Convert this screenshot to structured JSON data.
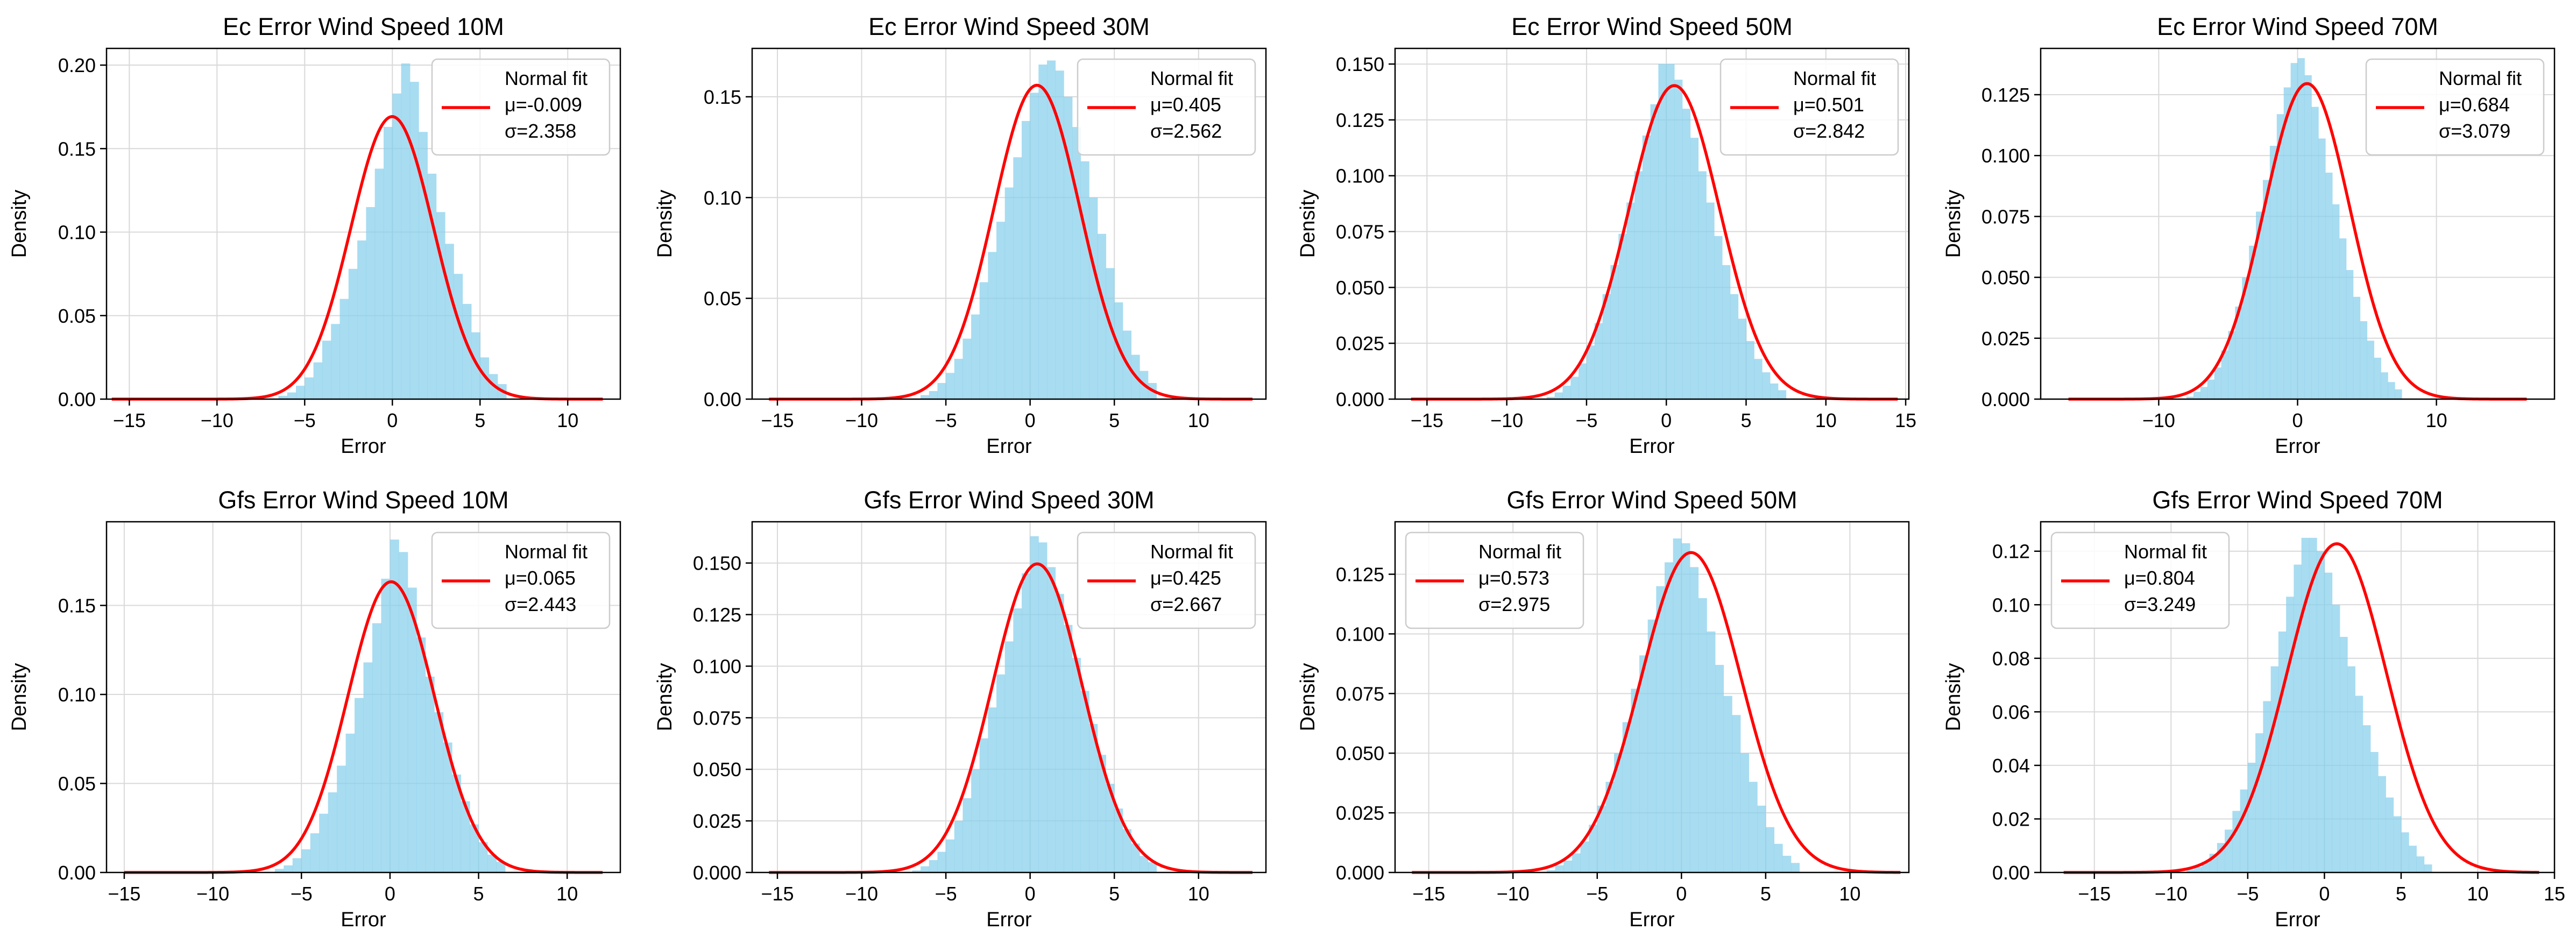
{
  "figure": {
    "background": "#ffffff",
    "hist_color": "#87ceeb",
    "fit_color": "#ff0000",
    "grid_color": "#d9d9d9"
  },
  "chart_data": [
    {
      "type": "histogram",
      "title": "Ec Error Wind Speed 10M",
      "xlabel": "Error",
      "ylabel": "Density",
      "xlim": [
        -16.3,
        13.0
      ],
      "ylim": [
        0,
        0.21
      ],
      "xticks": [
        -15,
        -10,
        -5,
        0,
        5,
        10
      ],
      "yticks": [
        0.0,
        0.05,
        0.1,
        0.15,
        0.2
      ],
      "ytick_decimals": 2,
      "grid": true,
      "legend_loc": "upper right",
      "legend_title": "Normal fit",
      "mu_label": "μ=-0.009",
      "sigma_label": "σ=2.358",
      "fit": {
        "mu": -0.009,
        "sigma": 2.358,
        "x_range": [
          -16,
          12
        ]
      },
      "bins": {
        "start": -6.5,
        "width": 0.5,
        "density": [
          0.002,
          0.004,
          0.008,
          0.013,
          0.022,
          0.035,
          0.045,
          0.06,
          0.078,
          0.095,
          0.115,
          0.138,
          0.163,
          0.183,
          0.201,
          0.19,
          0.16,
          0.135,
          0.112,
          0.093,
          0.075,
          0.057,
          0.04,
          0.025,
          0.015,
          0.009
        ]
      }
    },
    {
      "type": "histogram",
      "title": "Ec Error Wind Speed 30M",
      "xlabel": "Error",
      "ylabel": "Density",
      "xlim": [
        -16.5,
        14.0
      ],
      "ylim": [
        0,
        0.174
      ],
      "xticks": [
        -15,
        -10,
        -5,
        0,
        5,
        10
      ],
      "yticks": [
        0.0,
        0.05,
        0.1,
        0.15
      ],
      "ytick_decimals": 2,
      "grid": true,
      "legend_loc": "upper right",
      "legend_title": "Normal fit",
      "mu_label": "μ=0.405",
      "sigma_label": "σ=2.562",
      "fit": {
        "mu": 0.405,
        "sigma": 2.562,
        "x_range": [
          -15.5,
          13.2
        ]
      },
      "bins": {
        "start": -6.5,
        "width": 0.5,
        "density": [
          0.002,
          0.004,
          0.008,
          0.013,
          0.02,
          0.03,
          0.042,
          0.058,
          0.073,
          0.088,
          0.105,
          0.12,
          0.138,
          0.152,
          0.166,
          0.168,
          0.163,
          0.15,
          0.135,
          0.118,
          0.1,
          0.082,
          0.065,
          0.048,
          0.034,
          0.022,
          0.014,
          0.008
        ]
      }
    },
    {
      "type": "histogram",
      "title": "Ec Error Wind Speed 50M",
      "xlabel": "Error",
      "ylabel": "Density",
      "xlim": [
        -17.0,
        15.2
      ],
      "ylim": [
        0,
        0.157
      ],
      "xticks": [
        -15,
        -10,
        -5,
        0,
        5,
        10,
        15
      ],
      "yticks": [
        0.0,
        0.025,
        0.05,
        0.075,
        0.1,
        0.125,
        0.15
      ],
      "ytick_decimals": 3,
      "grid": true,
      "legend_loc": "upper right",
      "legend_title": "Normal fit",
      "mu_label": "μ=0.501",
      "sigma_label": "σ=2.842",
      "fit": {
        "mu": 0.501,
        "sigma": 2.842,
        "x_range": [
          -16,
          14.5
        ]
      },
      "bins": {
        "start": -7.5,
        "width": 0.5,
        "density": [
          0.001,
          0.003,
          0.006,
          0.01,
          0.016,
          0.024,
          0.034,
          0.047,
          0.06,
          0.074,
          0.088,
          0.102,
          0.118,
          0.132,
          0.15,
          0.15,
          0.143,
          0.13,
          0.117,
          0.102,
          0.088,
          0.073,
          0.06,
          0.047,
          0.036,
          0.026,
          0.018,
          0.012,
          0.007,
          0.004
        ]
      }
    },
    {
      "type": "histogram",
      "title": "Ec Error Wind Speed 70M",
      "xlabel": "Error",
      "ylabel": "Density",
      "xlim": [
        -18.5,
        18.5
      ],
      "ylim": [
        0,
        0.144
      ],
      "xticks": [
        -10,
        0,
        10
      ],
      "yticks": [
        0.0,
        0.025,
        0.05,
        0.075,
        0.1,
        0.125
      ],
      "ytick_decimals": 3,
      "grid": true,
      "legend_loc": "upper right",
      "legend_title": "Normal fit",
      "mu_label": "μ=0.684",
      "sigma_label": "σ=3.079",
      "fit": {
        "mu": 0.684,
        "sigma": 3.079,
        "x_range": [
          -16.5,
          16.5
        ]
      },
      "bins": {
        "start": -8.0,
        "width": 0.5,
        "density": [
          0.001,
          0.003,
          0.005,
          0.008,
          0.013,
          0.02,
          0.028,
          0.038,
          0.05,
          0.063,
          0.077,
          0.09,
          0.104,
          0.117,
          0.128,
          0.138,
          0.14,
          0.133,
          0.12,
          0.107,
          0.093,
          0.08,
          0.066,
          0.053,
          0.042,
          0.032,
          0.024,
          0.017,
          0.011,
          0.007,
          0.004
        ]
      }
    },
    {
      "type": "histogram",
      "title": "Gfs Error Wind Speed 10M",
      "xlabel": "Error",
      "ylabel": "Density",
      "xlim": [
        -16.0,
        13.0
      ],
      "ylim": [
        0,
        0.197
      ],
      "xticks": [
        -15,
        -10,
        -5,
        0,
        5,
        10
      ],
      "yticks": [
        0.0,
        0.05,
        0.1,
        0.15
      ],
      "ytick_decimals": 2,
      "grid": true,
      "legend_loc": "upper right",
      "legend_title": "Normal fit",
      "mu_label": "μ=0.065",
      "sigma_label": "σ=2.443",
      "fit": {
        "mu": 0.065,
        "sigma": 2.443,
        "x_range": [
          -15,
          12
        ]
      },
      "bins": {
        "start": -6.5,
        "width": 0.5,
        "density": [
          0.002,
          0.004,
          0.008,
          0.013,
          0.022,
          0.033,
          0.045,
          0.06,
          0.078,
          0.098,
          0.118,
          0.14,
          0.165,
          0.187,
          0.18,
          0.16,
          0.132,
          0.11,
          0.09,
          0.073,
          0.055,
          0.04,
          0.027,
          0.017,
          0.01,
          0.006
        ]
      }
    },
    {
      "type": "histogram",
      "title": "Gfs Error Wind Speed 30M",
      "xlabel": "Error",
      "ylabel": "Density",
      "xlim": [
        -16.5,
        14.0
      ],
      "ylim": [
        0,
        0.17
      ],
      "xticks": [
        -15,
        -10,
        -5,
        0,
        5,
        10
      ],
      "yticks": [
        0.0,
        0.025,
        0.05,
        0.075,
        0.1,
        0.125,
        0.15
      ],
      "ytick_decimals": 3,
      "grid": true,
      "legend_loc": "upper right",
      "legend_title": "Normal fit",
      "mu_label": "μ=0.425",
      "sigma_label": "σ=2.667",
      "fit": {
        "mu": 0.425,
        "sigma": 2.667,
        "x_range": [
          -15.5,
          13.2
        ]
      },
      "bins": {
        "start": -7.0,
        "width": 0.5,
        "density": [
          0.001,
          0.003,
          0.006,
          0.01,
          0.016,
          0.025,
          0.036,
          0.05,
          0.065,
          0.08,
          0.096,
          0.112,
          0.128,
          0.145,
          0.163,
          0.16,
          0.148,
          0.135,
          0.12,
          0.104,
          0.088,
          0.072,
          0.057,
          0.043,
          0.031,
          0.021,
          0.014,
          0.008,
          0.005
        ]
      }
    },
    {
      "type": "histogram",
      "title": "Gfs Error Wind Speed 50M",
      "xlabel": "Error",
      "ylabel": "Density",
      "xlim": [
        -17.0,
        13.5
      ],
      "ylim": [
        0,
        0.147
      ],
      "xticks": [
        -15,
        -10,
        -5,
        0,
        5,
        10
      ],
      "yticks": [
        0.0,
        0.025,
        0.05,
        0.075,
        0.1,
        0.125
      ],
      "ytick_decimals": 3,
      "grid": true,
      "legend_loc": "upper left",
      "legend_title": "Normal fit",
      "mu_label": "μ=0.573",
      "sigma_label": "σ=2.975",
      "fit": {
        "mu": 0.573,
        "sigma": 2.975,
        "x_range": [
          -16,
          13
        ]
      },
      "bins": {
        "start": -8.0,
        "width": 0.5,
        "density": [
          0.001,
          0.003,
          0.005,
          0.008,
          0.013,
          0.02,
          0.028,
          0.038,
          0.05,
          0.063,
          0.077,
          0.091,
          0.106,
          0.12,
          0.13,
          0.14,
          0.138,
          0.128,
          0.115,
          0.101,
          0.087,
          0.074,
          0.066,
          0.05,
          0.038,
          0.028,
          0.019,
          0.012,
          0.007,
          0.004
        ]
      }
    },
    {
      "type": "histogram",
      "title": "Gfs Error Wind Speed 70M",
      "xlabel": "Error",
      "ylabel": "Density",
      "xlim": [
        -18.5,
        15.0
      ],
      "ylim": [
        0,
        0.131
      ],
      "xticks": [
        -15,
        -10,
        -5,
        0,
        5,
        10,
        15
      ],
      "yticks": [
        0.0,
        0.02,
        0.04,
        0.06,
        0.08,
        0.1,
        0.12
      ],
      "ytick_decimals": 2,
      "grid": true,
      "legend_loc": "upper left",
      "legend_title": "Normal fit",
      "mu_label": "μ=0.804",
      "sigma_label": "σ=3.249",
      "fit": {
        "mu": 0.804,
        "sigma": 3.249,
        "x_range": [
          -17,
          14
        ]
      },
      "bins": {
        "start": -9.0,
        "width": 0.5,
        "density": [
          0.001,
          0.002,
          0.004,
          0.007,
          0.011,
          0.016,
          0.023,
          0.031,
          0.041,
          0.052,
          0.064,
          0.077,
          0.09,
          0.103,
          0.115,
          0.125,
          0.125,
          0.12,
          0.112,
          0.1,
          0.088,
          0.077,
          0.066,
          0.055,
          0.045,
          0.036,
          0.028,
          0.021,
          0.015,
          0.01,
          0.006,
          0.003
        ]
      }
    }
  ]
}
